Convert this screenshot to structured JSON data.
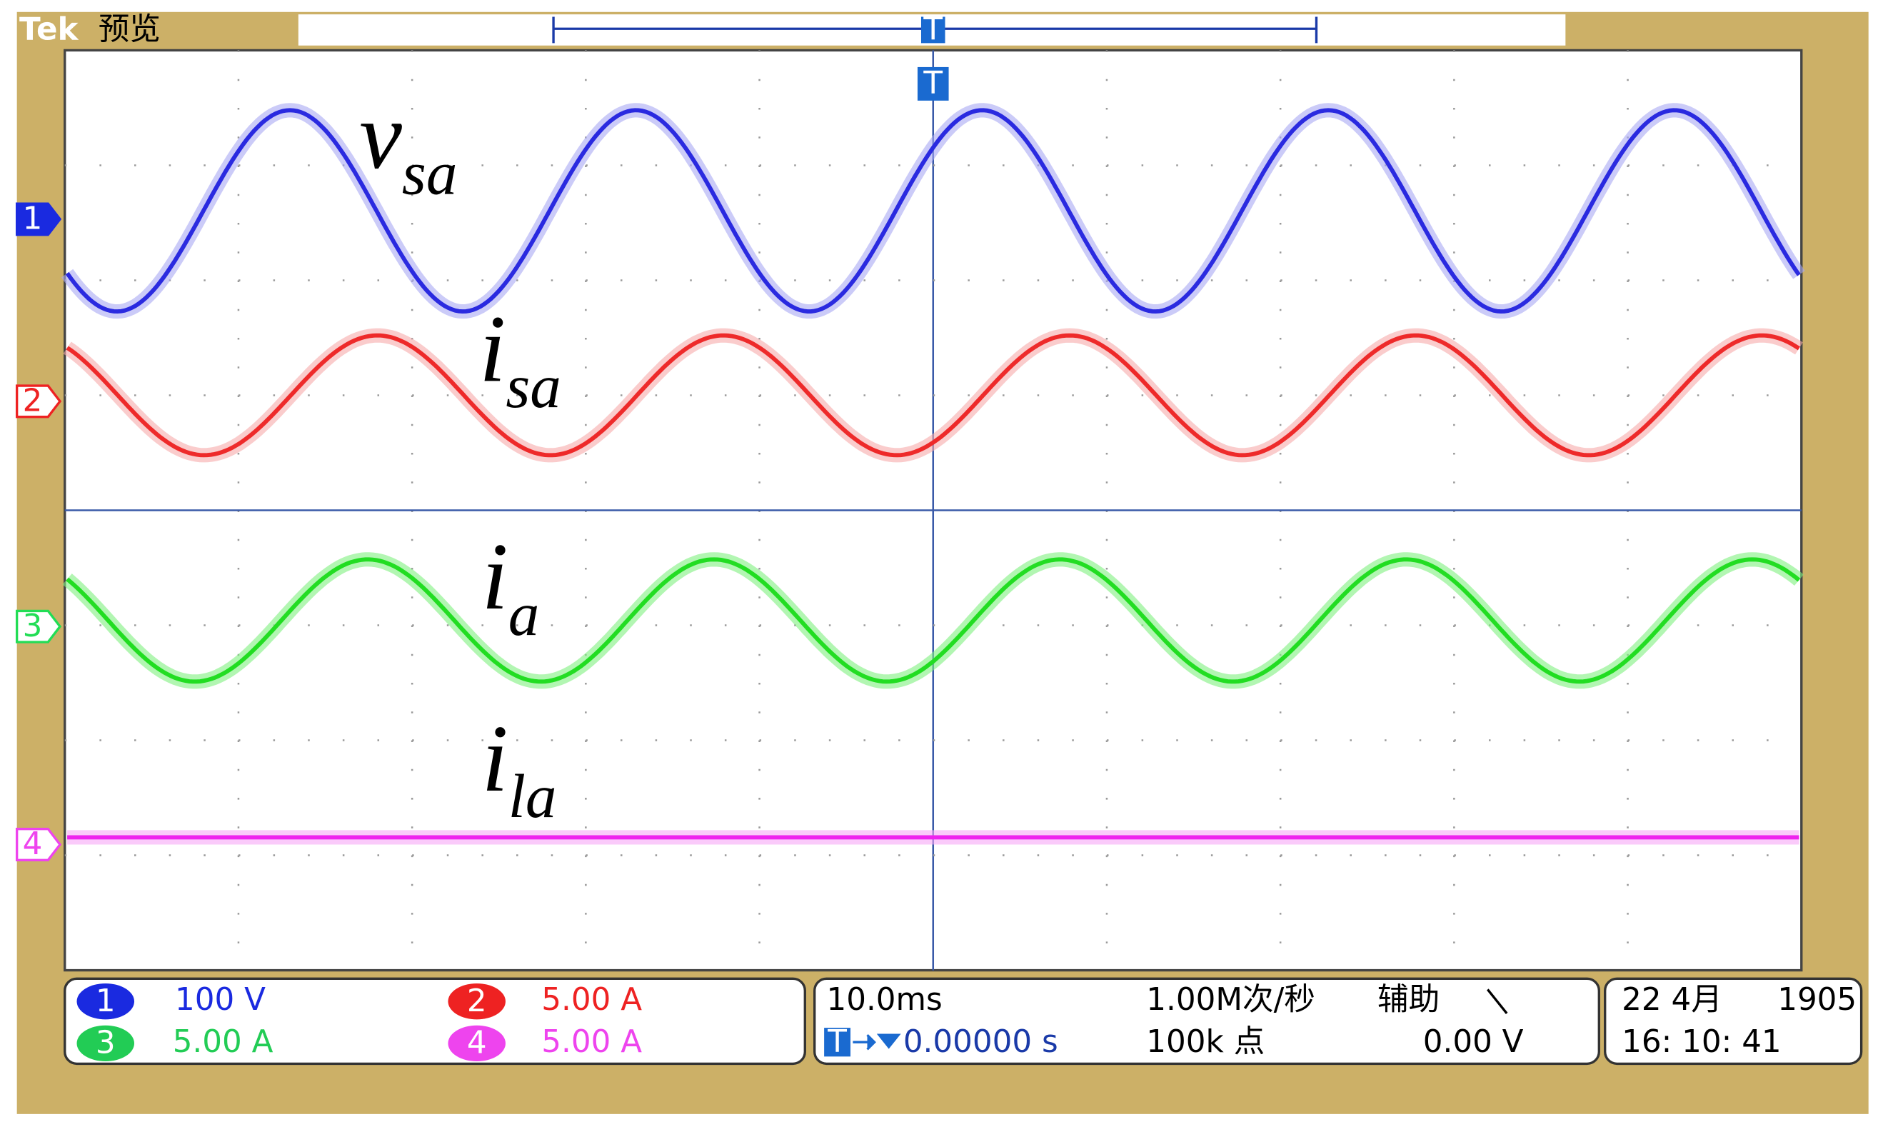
{
  "header": {
    "brand": "Tek",
    "mode": "预览"
  },
  "trigger_marker": "T",
  "channels": [
    {
      "number": "1",
      "scale": "100 V"
    },
    {
      "number": "2",
      "scale": "5.00 A"
    },
    {
      "number": "3",
      "scale": "5.00 A"
    },
    {
      "number": "4",
      "scale": "5.00 A"
    }
  ],
  "trace_labels": [
    {
      "symbol": "v",
      "subscript": "sa"
    },
    {
      "symbol": "i",
      "subscript": "sa"
    },
    {
      "symbol": "i",
      "subscript": "a"
    },
    {
      "symbol": "i",
      "subscript": "la"
    }
  ],
  "timebase": {
    "scale": "10.0ms",
    "sample_rate": "1.00M次/秒",
    "record_length": "100k 点",
    "trigger_position": "0.00000 s",
    "trigger_source": "辅助",
    "trigger_level": "0.00 V"
  },
  "datetime": {
    "date": "22 4月",
    "year": "1905",
    "time": "16: 10: 41"
  }
}
